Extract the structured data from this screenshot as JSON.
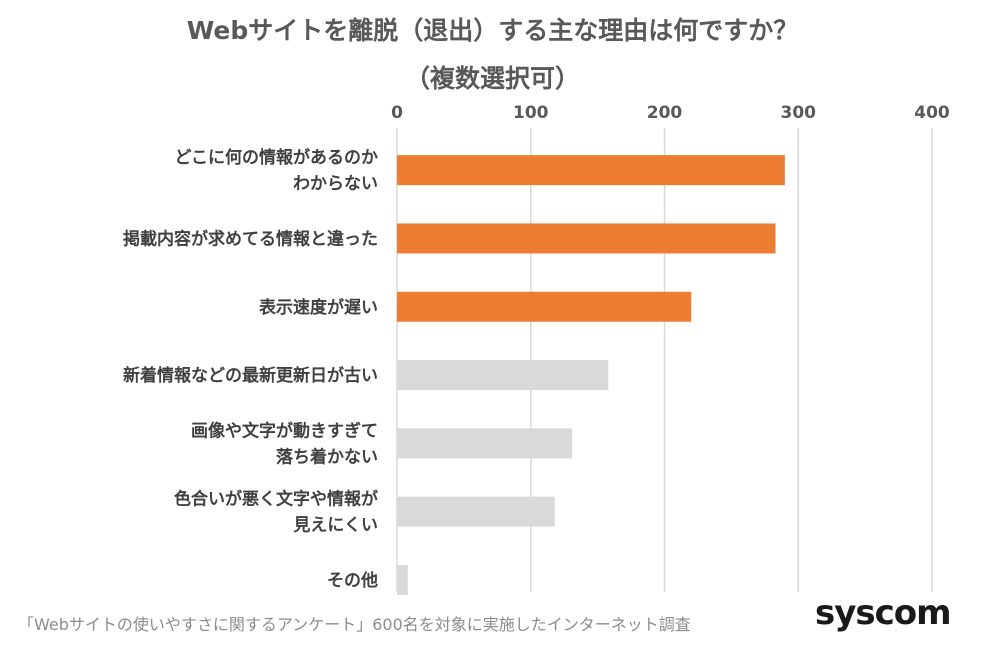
{
  "chart_data": {
    "type": "bar",
    "orientation": "horizontal",
    "title_lines": [
      "Webサイトを離脱（退出）する主な理由は何ですか？",
      "（複数選択可）"
    ],
    "xlim": [
      0,
      400
    ],
    "ticks": [
      0,
      100,
      200,
      300,
      400
    ],
    "tick_labels": [
      "0",
      "100",
      "200",
      "300",
      "400"
    ],
    "axis_position": "top",
    "grid": true,
    "categories": [
      [
        "どこに何の情報があるのか",
        "わからない"
      ],
      [
        "掲載内容が求めてる情報と違った"
      ],
      [
        "表示速度が遅い"
      ],
      [
        "新着情報などの最新更新日が古い"
      ],
      [
        "画像や文字が動きすぎて",
        "落ち着かない"
      ],
      [
        "色合いが悪く文字や情報が",
        "見えにくい"
      ],
      [
        "その他"
      ]
    ],
    "values": [
      290,
      283,
      220,
      158,
      131,
      118,
      8
    ],
    "bar_colors": [
      "#ed7d31",
      "#ed7d31",
      "#ed7d31",
      "#d9d9d9",
      "#d9d9d9",
      "#d9d9d9",
      "#d9d9d9"
    ],
    "grid_color": "#d9d9d9"
  },
  "footnote": "「Webサイトの使いやすさに関するアンケート」600名を対象に実施したインターネット調査",
  "logo_text": "syscom"
}
